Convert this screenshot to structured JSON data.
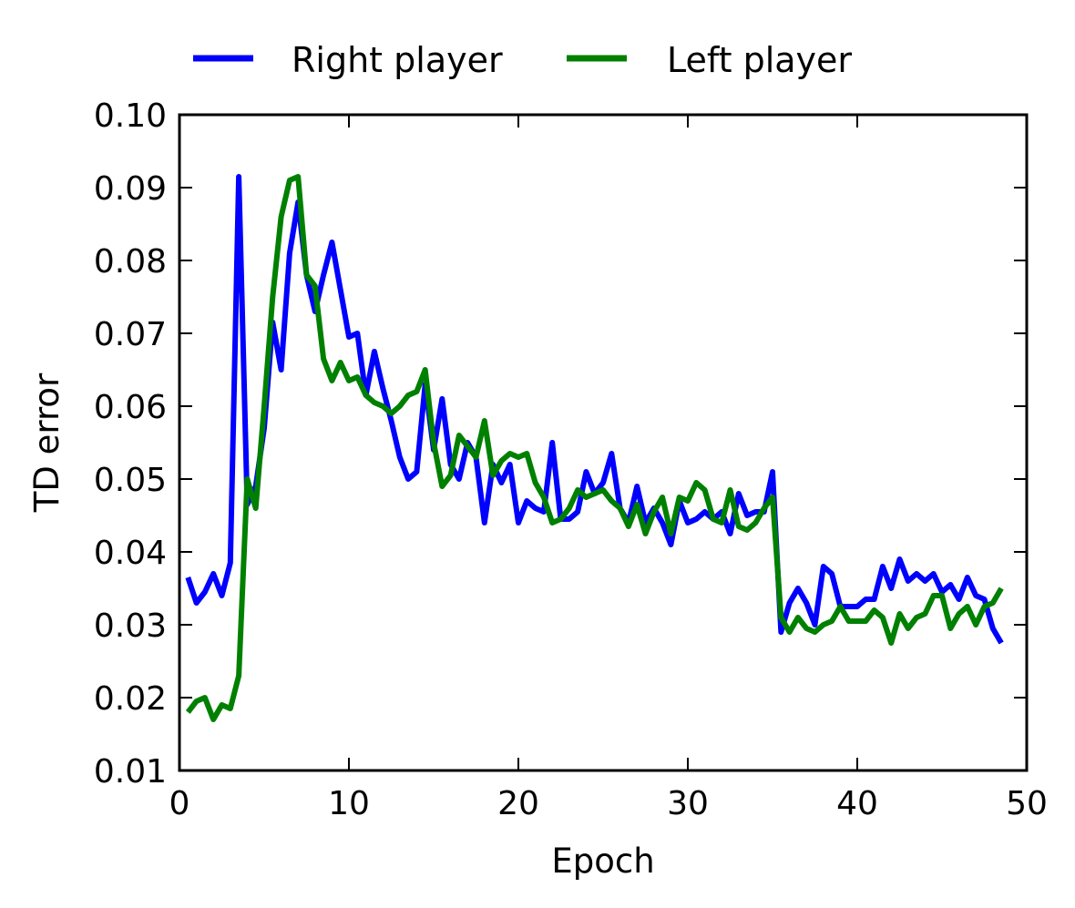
{
  "chart_data": {
    "type": "line",
    "title": "",
    "xlabel": "Epoch",
    "ylabel": "TD error",
    "xlim": [
      0,
      50
    ],
    "ylim": [
      0.01,
      0.1
    ],
    "xticks": [
      "0",
      "10",
      "20",
      "30",
      "40",
      "50"
    ],
    "yticks": [
      "0.01",
      "0.02",
      "0.03",
      "0.04",
      "0.05",
      "0.06",
      "0.07",
      "0.08",
      "0.09",
      "0.10"
    ],
    "grid": false,
    "legend_position": "top, above plot",
    "series": [
      {
        "name": "Right player",
        "color": "#0000ff",
        "x": [
          0.5,
          1.0,
          1.5,
          2.0,
          2.5,
          3.0,
          3.5,
          4.0,
          4.5,
          5.0,
          5.5,
          6.0,
          6.5,
          7.0,
          7.5,
          8.0,
          8.5,
          9.0,
          9.5,
          10.0,
          10.5,
          11.0,
          11.5,
          12.0,
          12.5,
          13.0,
          13.5,
          14.0,
          14.5,
          15.0,
          15.5,
          16.0,
          16.5,
          17.0,
          17.5,
          18.0,
          18.5,
          19.0,
          19.5,
          20.0,
          20.5,
          21.0,
          21.5,
          22.0,
          22.5,
          23.0,
          23.5,
          24.0,
          24.5,
          25.0,
          25.5,
          26.0,
          26.5,
          27.0,
          27.5,
          28.0,
          28.5,
          29.0,
          29.5,
          30.0,
          30.5,
          31.0,
          31.5,
          32.0,
          32.5,
          33.0,
          33.5,
          34.0,
          34.5,
          35.0,
          35.5,
          36.0,
          36.5,
          37.0,
          37.5,
          38.0,
          38.5,
          39.0,
          39.5,
          40.0,
          40.5,
          41.0,
          41.5,
          42.0,
          42.5,
          43.0,
          43.5,
          44.0,
          44.5,
          45.0,
          45.5,
          46.0,
          46.5,
          47.0,
          47.5,
          48.0,
          48.5
        ],
        "values": [
          0.0365,
          0.033,
          0.0345,
          0.037,
          0.034,
          0.0385,
          0.0915,
          0.0465,
          0.049,
          0.057,
          0.0715,
          0.065,
          0.081,
          0.088,
          0.078,
          0.073,
          0.078,
          0.0825,
          0.076,
          0.0695,
          0.07,
          0.0615,
          0.0675,
          0.0625,
          0.058,
          0.053,
          0.05,
          0.051,
          0.063,
          0.054,
          0.061,
          0.052,
          0.05,
          0.055,
          0.053,
          0.044,
          0.052,
          0.0495,
          0.052,
          0.044,
          0.047,
          0.046,
          0.0455,
          0.055,
          0.0445,
          0.0445,
          0.0455,
          0.051,
          0.048,
          0.0495,
          0.0535,
          0.046,
          0.044,
          0.049,
          0.044,
          0.046,
          0.044,
          0.041,
          0.047,
          0.044,
          0.0445,
          0.0455,
          0.0445,
          0.0455,
          0.0425,
          0.048,
          0.045,
          0.0455,
          0.0455,
          0.051,
          0.029,
          0.033,
          0.035,
          0.033,
          0.03,
          0.038,
          0.037,
          0.0325,
          0.0325,
          0.0325,
          0.0335,
          0.0335,
          0.038,
          0.035,
          0.039,
          0.036,
          0.037,
          0.036,
          0.037,
          0.0345,
          0.0355,
          0.0335,
          0.0365,
          0.034,
          0.0335,
          0.0295,
          0.0275
        ]
      },
      {
        "name": "Left player",
        "color": "#008000",
        "x": [
          0.5,
          1.0,
          1.5,
          2.0,
          2.5,
          3.0,
          3.5,
          4.0,
          4.5,
          5.0,
          5.5,
          6.0,
          6.5,
          7.0,
          7.5,
          8.0,
          8.5,
          9.0,
          9.5,
          10.0,
          10.5,
          11.0,
          11.5,
          12.0,
          12.5,
          13.0,
          13.5,
          14.0,
          14.5,
          15.0,
          15.5,
          16.0,
          16.5,
          17.0,
          17.5,
          18.0,
          18.5,
          19.0,
          19.5,
          20.0,
          20.5,
          21.0,
          21.5,
          22.0,
          22.5,
          23.0,
          23.5,
          24.0,
          24.5,
          25.0,
          25.5,
          26.0,
          26.5,
          27.0,
          27.5,
          28.0,
          28.5,
          29.0,
          29.5,
          30.0,
          30.5,
          31.0,
          31.5,
          32.0,
          32.5,
          33.0,
          33.5,
          34.0,
          34.5,
          35.0,
          35.5,
          36.0,
          36.5,
          37.0,
          37.5,
          38.0,
          38.5,
          39.0,
          39.5,
          40.0,
          40.5,
          41.0,
          41.5,
          42.0,
          42.5,
          43.0,
          43.5,
          44.0,
          44.5,
          45.0,
          45.5,
          46.0,
          46.5,
          47.0,
          47.5,
          48.0,
          48.5
        ],
        "values": [
          0.018,
          0.0195,
          0.02,
          0.017,
          0.019,
          0.0185,
          0.023,
          0.05,
          0.046,
          0.06,
          0.075,
          0.086,
          0.091,
          0.0915,
          0.078,
          0.0765,
          0.0665,
          0.0635,
          0.066,
          0.0635,
          0.064,
          0.0615,
          0.0605,
          0.06,
          0.059,
          0.06,
          0.0615,
          0.062,
          0.065,
          0.055,
          0.049,
          0.0505,
          0.056,
          0.0545,
          0.053,
          0.058,
          0.0505,
          0.0525,
          0.0535,
          0.053,
          0.0535,
          0.0495,
          0.0475,
          0.044,
          0.0445,
          0.046,
          0.0485,
          0.0475,
          0.048,
          0.0485,
          0.047,
          0.046,
          0.0435,
          0.0465,
          0.0425,
          0.0455,
          0.0475,
          0.0425,
          0.0475,
          0.047,
          0.0495,
          0.0485,
          0.0445,
          0.044,
          0.0485,
          0.0435,
          0.043,
          0.044,
          0.046,
          0.0475,
          0.031,
          0.029,
          0.031,
          0.0295,
          0.029,
          0.03,
          0.0305,
          0.0325,
          0.0305,
          0.0305,
          0.0305,
          0.032,
          0.031,
          0.0275,
          0.0315,
          0.0295,
          0.031,
          0.0315,
          0.034,
          0.034,
          0.0295,
          0.0315,
          0.0325,
          0.03,
          0.0325,
          0.033,
          0.035
        ]
      }
    ]
  }
}
